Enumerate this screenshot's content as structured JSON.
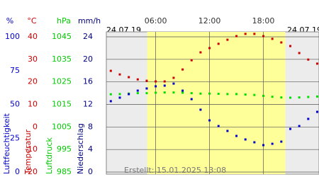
{
  "chart_data": {
    "type": "line",
    "date_left": "24.07.19",
    "date_right": "24.07.19",
    "footer": "Erstellt: 15.01.2025 13:08",
    "x": [
      1,
      2,
      3,
      4,
      5,
      6,
      7,
      8,
      9,
      10,
      11,
      12,
      13,
      14,
      15,
      16,
      17,
      18,
      19,
      20,
      21,
      22,
      23,
      24
    ],
    "xlim": [
      0.5,
      24.2
    ],
    "xticks": [
      {
        "value": 6,
        "label": "06:00"
      },
      {
        "value": 12,
        "label": "12:00"
      },
      {
        "value": 18,
        "label": "18:00"
      }
    ],
    "daylight": [
      5.05,
      20.45
    ],
    "grid": true,
    "axes": [
      {
        "unit": "%",
        "title": "Luftfeuchtigkeit",
        "color": "#0000cc",
        "ylim": [
          0,
          100
        ],
        "yticks": [
          0,
          25,
          50,
          75,
          100
        ]
      },
      {
        "unit": "°C",
        "title": "Temperatur",
        "color": "#cc0000",
        "ylim": [
          -20,
          40
        ],
        "yticks": [
          -20,
          -10,
          0,
          10,
          20,
          30,
          40
        ]
      },
      {
        "unit": "hPa",
        "title": "Luftdruck",
        "color": "#00cc00",
        "ylim": [
          985,
          1045
        ],
        "yticks": [
          985,
          995,
          1005,
          1015,
          1025,
          1035,
          1045
        ]
      },
      {
        "unit": "mm/h",
        "title": "Niederschlag",
        "color": "#000080",
        "ylim": [
          0,
          24
        ],
        "yticks": [
          0,
          4,
          8,
          12,
          16,
          20,
          24
        ]
      }
    ],
    "series": [
      {
        "axis": 1,
        "color": "#cc0000",
        "values": [
          24.9,
          23.3,
          22.1,
          21.1,
          20.5,
          20.2,
          20.2,
          21.8,
          25.5,
          29.6,
          33.1,
          35.0,
          36.9,
          38.7,
          40.3,
          41.3,
          41.3,
          40.3,
          39.1,
          37.5,
          35.9,
          32.8,
          29.9,
          28.1
        ]
      },
      {
        "axis": 2,
        "color": "#00e000",
        "values": [
          1019.5,
          1019.6,
          1019.8,
          1020,
          1020,
          1020.2,
          1020.3,
          1020.3,
          1020.2,
          1020,
          1019.8,
          1019.8,
          1019.7,
          1019.6,
          1019.6,
          1019.4,
          1019.2,
          1018.8,
          1018.4,
          1018.1,
          1018,
          1018.1,
          1018.3,
          1018.5
        ]
      },
      {
        "axis": 0,
        "color": "#0000cc",
        "values": [
          52.4,
          55.0,
          57.6,
          60.2,
          61.8,
          63.4,
          63.9,
          65.4,
          60.2,
          53.9,
          46.1,
          38.2,
          34.0,
          30.4,
          26.7,
          24.1,
          22.0,
          19.9,
          20.9,
          22.5,
          31.9,
          34.0,
          39.3,
          44.5
        ]
      }
    ]
  }
}
